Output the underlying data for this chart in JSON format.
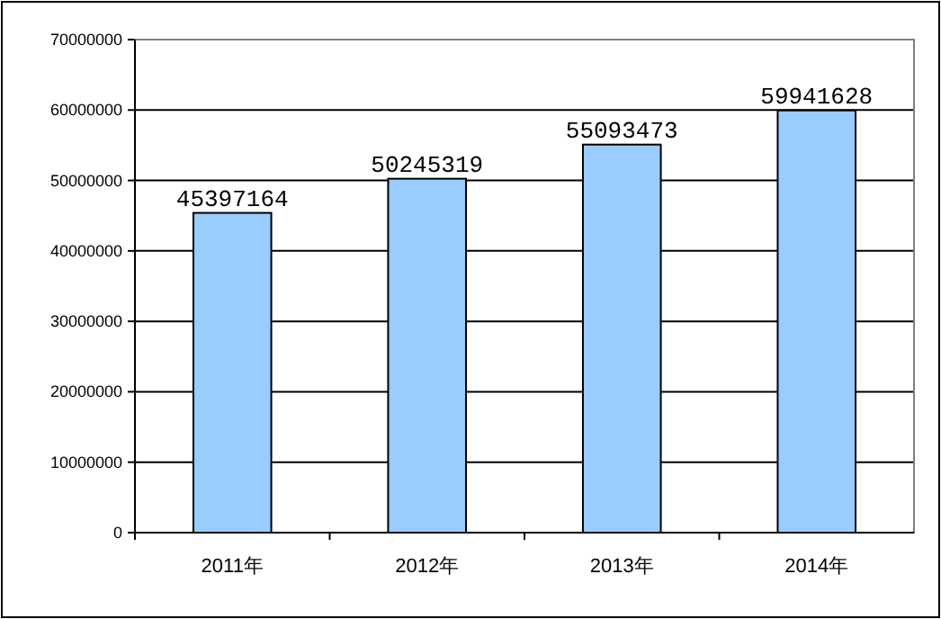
{
  "chart_data": {
    "type": "bar",
    "categories": [
      "2011年",
      "2012年",
      "2013年",
      "2014年"
    ],
    "values": [
      45397164,
      50245319,
      55093473,
      59941628
    ],
    "color": "#99ccff",
    "ylim": [
      0,
      70000000
    ],
    "yticks": [
      0,
      10000000,
      20000000,
      30000000,
      40000000,
      50000000,
      60000000,
      70000000
    ],
    "grid": "y",
    "data_labels": true
  }
}
